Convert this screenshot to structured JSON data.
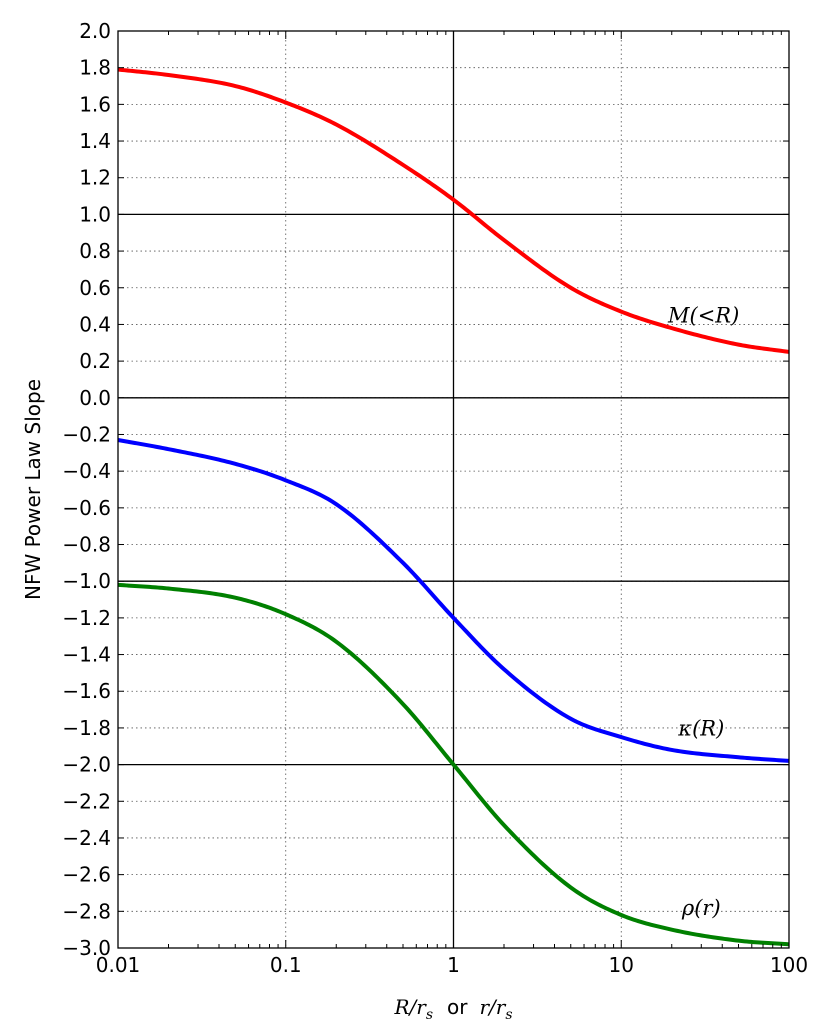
{
  "chart_data": {
    "type": "line",
    "title": "",
    "ylabel": "NFW Power Law Slope",
    "xlabel": {
      "left": "R/r",
      "left_sub": "s",
      "middle": "or",
      "right": "r/r",
      "right_sub": "s"
    },
    "xscale": "log",
    "xlim": [
      0.01,
      100
    ],
    "ylim": [
      -3.0,
      2.0
    ],
    "x_ticks": [
      0.01,
      0.1,
      1,
      10,
      100
    ],
    "x_tick_labels": [
      "0.01",
      "0.1",
      "1",
      "10",
      "100"
    ],
    "y_ticks": [
      -3.0,
      -2.8,
      -2.6,
      -2.4,
      -2.2,
      -2.0,
      -1.8,
      -1.6,
      -1.4,
      -1.2,
      -1.0,
      -0.8,
      -0.6,
      -0.4,
      -0.2,
      0.0,
      0.2,
      0.4,
      0.6,
      0.8,
      1.0,
      1.2,
      1.4,
      1.6,
      1.8,
      2.0
    ],
    "y_tick_labels": [
      "−3.0",
      "−2.8",
      "−2.6",
      "−2.4",
      "−2.2",
      "−2.0",
      "−1.8",
      "−1.6",
      "−1.4",
      "−1.2",
      "−1.0",
      "−0.8",
      "−0.6",
      "−0.4",
      "−0.2",
      "0.0",
      "0.2",
      "0.4",
      "0.6",
      "0.8",
      "1.0",
      "1.2",
      "1.4",
      "1.6",
      "1.8",
      "2.0"
    ],
    "grid": "dotted",
    "reference_lines": {
      "horizontal": [
        1.0,
        0.0,
        -1.0,
        -2.0
      ],
      "vertical": [
        1
      ]
    },
    "x": [
      0.01,
      0.02,
      0.05,
      0.1,
      0.2,
      0.5,
      1,
      2,
      5,
      10,
      20,
      50,
      100
    ],
    "series": [
      {
        "name": "M(<R)",
        "color": "#ff0000",
        "values": [
          1.79,
          1.76,
          1.7,
          1.61,
          1.49,
          1.27,
          1.08,
          0.86,
          0.6,
          0.47,
          0.38,
          0.29,
          0.25
        ]
      },
      {
        "name": "κ(R)",
        "color": "#0000ff",
        "values": [
          -0.23,
          -0.28,
          -0.36,
          -0.45,
          -0.58,
          -0.9,
          -1.2,
          -1.48,
          -1.75,
          -1.85,
          -1.92,
          -1.96,
          -1.98
        ]
      },
      {
        "name": "ρ(r)",
        "color": "#008000",
        "values": [
          -1.02,
          -1.04,
          -1.09,
          -1.18,
          -1.33,
          -1.67,
          -2.0,
          -2.33,
          -2.67,
          -2.82,
          -2.9,
          -2.96,
          -2.98
        ]
      }
    ]
  }
}
